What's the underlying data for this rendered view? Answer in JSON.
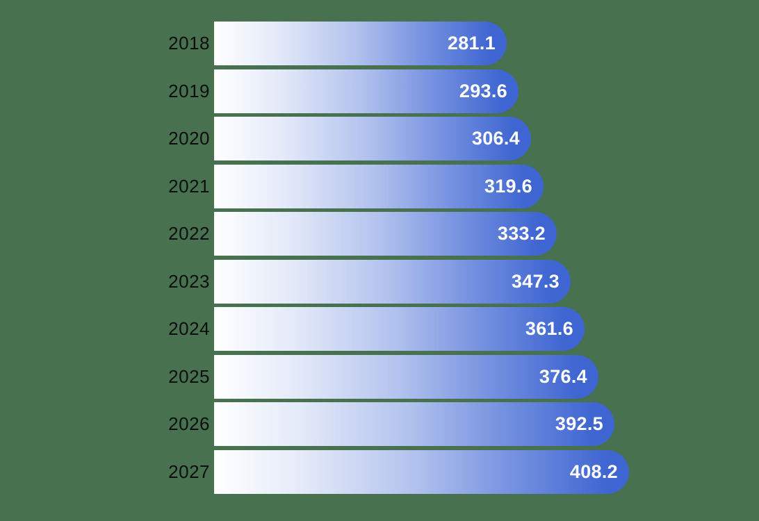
{
  "chart_data": {
    "type": "bar",
    "orientation": "horizontal",
    "title": "",
    "xlabel": "",
    "ylabel": "",
    "grid": false,
    "legend": false,
    "categories": [
      "2018",
      "2019",
      "2020",
      "2021",
      "2022",
      "2023",
      "2024",
      "2025",
      "2026",
      "2027"
    ],
    "values": [
      281.1,
      293.6,
      306.4,
      319.6,
      333.2,
      347.3,
      361.6,
      376.4,
      392.5,
      408.2
    ],
    "value_labels": [
      "281.1",
      "293.6",
      "306.4",
      "319.6",
      "333.2",
      "347.3",
      "361.6",
      "376.4",
      "392.5",
      "408.2"
    ],
    "x_range": [
      0,
      420
    ],
    "colors": {
      "background": "#47714f",
      "bar_gradient_start": "#ffffff",
      "bar_gradient_mid": "#b3c3ee",
      "bar_gradient_end": "#3e65d1",
      "category_label": "#0d0e10",
      "value_label": "#ffffff"
    }
  }
}
